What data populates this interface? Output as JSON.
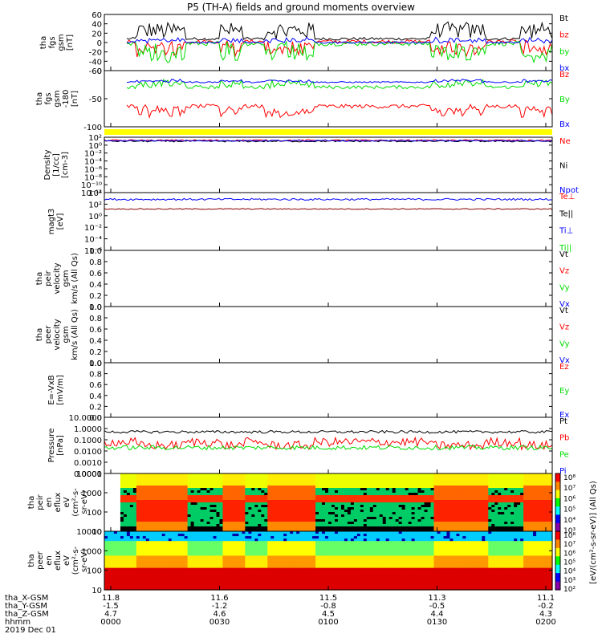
{
  "title": "P5 (TH-A) fields and ground moments overview",
  "chart_data": [
    {
      "type": "line",
      "ylabel": [
        "tha",
        "fgs",
        "gsm",
        "[nT]"
      ],
      "ylim": [
        -60,
        60
      ],
      "yticks": [
        60,
        40,
        20,
        0,
        -20,
        -40,
        -60
      ],
      "legend": [
        {
          "text": "Bt",
          "color": "#000000"
        },
        {
          "text": "bz",
          "color": "#ff0000"
        },
        {
          "text": "by",
          "color": "#00dd00"
        },
        {
          "text": "bx",
          "color": "#0000ff"
        }
      ],
      "series": [
        {
          "name": "Bt",
          "color": "#000000",
          "baseline": 8,
          "noise": 3,
          "burst": 35
        },
        {
          "name": "bz",
          "color": "#ff0000",
          "baseline": 2,
          "noise": 4,
          "burst": -30
        },
        {
          "name": "by",
          "color": "#00dd00",
          "baseline": -2,
          "noise": 5,
          "burst": -40
        },
        {
          "name": "bx",
          "color": "#0000ff",
          "baseline": 0,
          "noise": 2,
          "burst": 10
        }
      ]
    },
    {
      "type": "line",
      "ylabel": [
        "tha",
        "fgs",
        "gsm",
        "-180",
        "[nT]"
      ],
      "ylim": [
        -120,
        50
      ],
      "yticks": [
        0,
        -50,
        -100
      ],
      "legend": [
        {
          "text": "Bz",
          "color": "#ff0000"
        },
        {
          "text": "By",
          "color": "#00dd00"
        },
        {
          "text": "Bx",
          "color": "#0000ff"
        }
      ],
      "series": [
        {
          "name": "Bz",
          "color": "#ff0000",
          "baseline": -58,
          "noise": 6,
          "burst": -30
        },
        {
          "name": "By",
          "color": "#00dd00",
          "baseline": 0,
          "noise": 5,
          "burst": 20
        },
        {
          "name": "Bx",
          "color": "#0000ff",
          "baseline": 15,
          "noise": 2,
          "burst": 8
        }
      ]
    },
    {
      "type": "line",
      "ylabel": [
        "Density",
        "[1/cc]",
        "[cm-3]"
      ],
      "scale": "log",
      "ylim": [
        1e-12,
        100
      ],
      "yticks": [
        "10²",
        "10⁰",
        "10⁻²",
        "10⁻⁴",
        "10⁻⁶",
        "10⁻⁸",
        "10⁻¹⁰",
        "10⁻¹²"
      ],
      "legend": [
        {
          "text": "Ne",
          "color": "#ff0000"
        },
        {
          "text": "Ni",
          "color": "#000000"
        },
        {
          "text": "Npot",
          "color": "#0000ff"
        }
      ],
      "series": [
        {
          "name": "Ne",
          "color": "#ff0000",
          "baseline": 1.2,
          "noise": 0.2
        },
        {
          "name": "Ni",
          "color": "#000000",
          "baseline": 1.0,
          "noise": 0.2
        },
        {
          "name": "Npot",
          "color": "#0000ff",
          "baseline": 1.1,
          "noise": 0.15
        }
      ]
    },
    {
      "type": "line",
      "ylabel": [
        "magt3",
        "[eV]"
      ],
      "scale": "log",
      "ylim": [
        0.01,
        10000.0
      ],
      "yticks": [
        "10⁴",
        "10²",
        "10⁰",
        "10⁻²",
        "10⁻⁴",
        "10⁻⁶"
      ],
      "legend": [
        {
          "text": "Te⊥",
          "color": "#ff0000"
        },
        {
          "text": "Te||",
          "color": "#000000"
        },
        {
          "text": "Ti⊥",
          "color": "#0000ff"
        },
        {
          "text": "Ti||",
          "color": "#00dd00"
        }
      ],
      "series": [
        {
          "name": "Ti",
          "color": "#0000ff",
          "baseline": 3.3,
          "noise": 0.1
        },
        {
          "name": "Te",
          "color": "#8b0000",
          "baseline": 2.3,
          "noise": 0.05
        }
      ]
    },
    {
      "type": "line",
      "ylabel": [
        "tha",
        "peir",
        "velocity",
        "gsm",
        "km/s (All Qs)"
      ],
      "ylim": [
        0,
        1
      ],
      "yticks": [
        "1.0",
        "0.8",
        "0.6",
        "0.4",
        "0.2",
        "0.0"
      ],
      "legend": [
        {
          "text": "Vt",
          "color": "#000000"
        },
        {
          "text": "Vz",
          "color": "#ff0000"
        },
        {
          "text": "Vy",
          "color": "#00dd00"
        },
        {
          "text": "Vx",
          "color": "#0000ff"
        }
      ],
      "series": []
    },
    {
      "type": "line",
      "ylabel": [
        "tha",
        "peer",
        "velocity",
        "gsm",
        "km/s (All Qs)"
      ],
      "ylim": [
        0,
        1
      ],
      "yticks": [
        "1.0",
        "0.8",
        "0.6",
        "0.4",
        "0.2",
        "0.0"
      ],
      "legend": [
        {
          "text": "Vt",
          "color": "#000000"
        },
        {
          "text": "Vz",
          "color": "#ff0000"
        },
        {
          "text": "Vy",
          "color": "#00dd00"
        },
        {
          "text": "Vx",
          "color": "#0000ff"
        }
      ],
      "series": []
    },
    {
      "type": "line",
      "ylabel": [
        "E=-VxB",
        "[mV/m]"
      ],
      "ylim": [
        0,
        1
      ],
      "yticks": [
        "1.0",
        "0.8",
        "0.6",
        "0.4",
        "0.2",
        "0.0"
      ],
      "legend": [
        {
          "text": "Ez",
          "color": "#ff0000"
        },
        {
          "text": "Ey",
          "color": "#00dd00"
        },
        {
          "text": "Ex",
          "color": "#0000ff"
        }
      ],
      "series": []
    },
    {
      "type": "line",
      "ylabel": [
        "Pressure",
        "[nPa]"
      ],
      "scale": "log",
      "ylim": [
        0.0001,
        10
      ],
      "yticks": [
        "10.0000",
        "1.0000",
        "0.1000",
        "0.0100",
        "0.0010",
        "0.0001"
      ],
      "legend": [
        {
          "text": "Pt",
          "color": "#000000"
        },
        {
          "text": "Pb",
          "color": "#ff0000"
        },
        {
          "text": "Pe",
          "color": "#00dd00"
        },
        {
          "text": "Pi",
          "color": "#0000ff"
        }
      ],
      "series": [
        {
          "name": "Pt",
          "color": "#000000",
          "baseline": -0.3,
          "noise": 0.12
        },
        {
          "name": "Pb",
          "color": "#ff0000",
          "baseline": -1.2,
          "noise": 0.4
        },
        {
          "name": "Pe",
          "color": "#00dd00",
          "baseline": -1.7,
          "noise": 0.2
        }
      ]
    },
    {
      "type": "heatmap",
      "ylabel": [
        "tha",
        "peir",
        "en",
        "eflux",
        "eV",
        "(cm²-s-",
        "sr-eV)"
      ],
      "scale": "log",
      "ylim": [
        5,
        20000
      ],
      "yticks": [
        "10000",
        "1000",
        "100",
        "10"
      ],
      "colorbar": [
        "10⁸",
        "10⁷",
        "10⁶",
        "10⁵",
        "10⁴",
        "10³"
      ],
      "colorbar_label": "[eV/(cm²-s-sr-eV)] (All Qs)"
    },
    {
      "type": "heatmap",
      "ylabel": [
        "tha",
        "peer",
        "en",
        "eflux",
        "eV",
        "(cm²-s-",
        "sr-eV)"
      ],
      "scale": "log",
      "ylim": [
        5,
        20000
      ],
      "yticks": [
        "10000",
        "1000",
        "100",
        "10"
      ],
      "colorbar": [
        "10⁸",
        "10⁷",
        "10⁶",
        "10⁵",
        "10⁴",
        "10³",
        "10²"
      ],
      "colorbar_label": "[eV/(cm²-s-sr-eV)] (All Qs)"
    }
  ],
  "xaxis": {
    "row_labels": [
      "tha_X-GSM",
      "tha_Y-GSM",
      "tha_Z-GSM",
      "hhmm",
      "2019 Dec 01"
    ],
    "columns": [
      [
        "11.8",
        "-1.5",
        "4.7",
        "0000"
      ],
      [
        "11.6",
        "-1.2",
        "4.6",
        "0030"
      ],
      [
        "11.5",
        "-0.8",
        "4.5",
        "0100"
      ],
      [
        "11.3",
        "-0.5",
        "4.4",
        "0130"
      ],
      [
        "11.1",
        "-0.2",
        "4.3",
        "0200"
      ]
    ]
  },
  "bursts": [
    [
      0.07,
      0.18
    ],
    [
      0.26,
      0.31
    ],
    [
      0.36,
      0.47
    ],
    [
      0.73,
      0.85
    ],
    [
      0.93,
      1.0
    ]
  ]
}
